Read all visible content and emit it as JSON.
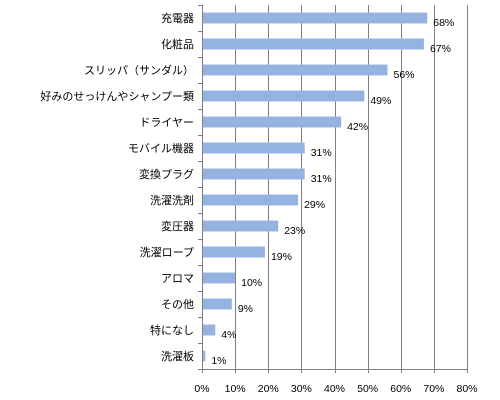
{
  "chart_data": {
    "type": "bar",
    "orientation": "horizontal",
    "categories": [
      "充電器",
      "化粧品",
      "スリッパ（サンダル）",
      "好みのせっけんやシャンプー類",
      "ドライヤー",
      "モバイル機器",
      "変換プラグ",
      "洗濯洗剤",
      "変圧器",
      "洗濯ロープ",
      "アロマ",
      "その他",
      "特になし",
      "洗濯板"
    ],
    "values": [
      68,
      67,
      56,
      49,
      42,
      31,
      31,
      29,
      23,
      19,
      10,
      9,
      4,
      1
    ],
    "value_labels": [
      "68%",
      "67%",
      "56%",
      "49%",
      "42%",
      "31%",
      "31%",
      "29%",
      "23%",
      "19%",
      "10%",
      "9%",
      "4%",
      "1%"
    ],
    "xlim": [
      0,
      80
    ],
    "x_ticks": [
      0,
      10,
      20,
      30,
      40,
      50,
      60,
      70,
      80
    ],
    "x_tick_labels": [
      "0%",
      "10%",
      "20%",
      "30%",
      "40%",
      "50%",
      "60%",
      "70%",
      "80%"
    ],
    "grid": "vertical",
    "legend": "none",
    "title": "",
    "xlabel": "",
    "ylabel": "",
    "colors": {
      "bar": "#95b3e0",
      "grid": "#808080",
      "axis": "#808080",
      "text": "#000000"
    }
  }
}
